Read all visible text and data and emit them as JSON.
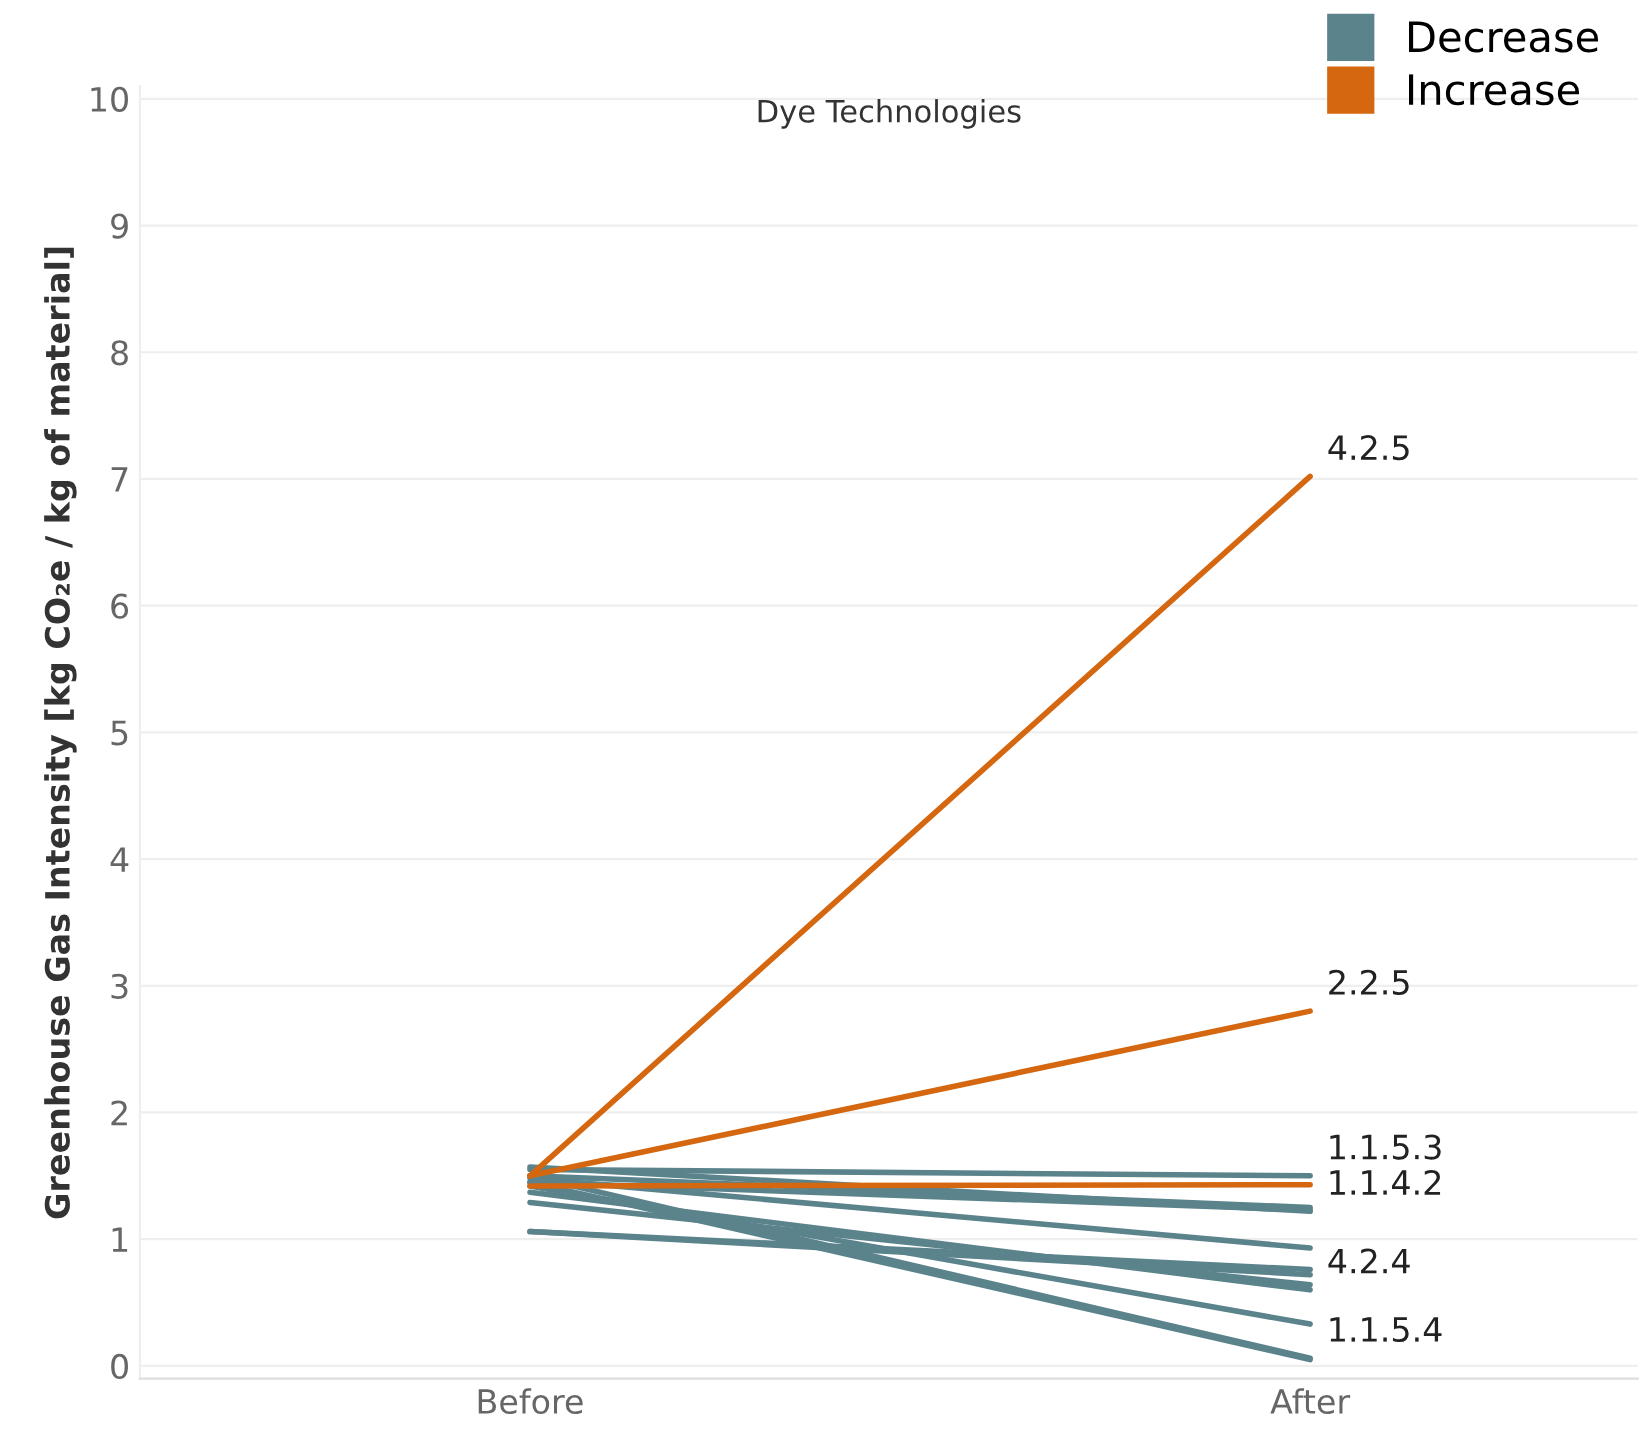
{
  "chart_data": {
    "type": "line",
    "title": "Dye Technologies",
    "ylabel": "Greenhouse Gas Intensity [kg CO₂e / kg of material]",
    "categories": [
      "Before",
      "After"
    ],
    "ylim": [
      -0.1,
      10.1
    ],
    "yticks": [
      0,
      1,
      2,
      3,
      4,
      5,
      6,
      7,
      8,
      9,
      10
    ],
    "grid": "y",
    "legend": "top right",
    "marker": "none",
    "line_style": "solid",
    "series": [
      {
        "name": "Decrease",
        "color": "#5b838c",
        "values": [
          1.55,
          1.5
        ]
      },
      {
        "color": "#5b838c",
        "values": [
          1.5,
          1.25
        ]
      },
      {
        "color": "#5b838c",
        "values": [
          1.45,
          1.23
        ]
      },
      {
        "color": "#5b838c",
        "values": [
          1.57,
          1.22
        ]
      },
      {
        "color": "#5b838c",
        "values": [
          1.48,
          0.93
        ]
      },
      {
        "color": "#5b838c",
        "values": [
          1.06,
          0.76
        ]
      },
      {
        "color": "#5b838c",
        "values": [
          1.06,
          0.72
        ]
      },
      {
        "color": "#5b838c",
        "values": [
          1.29,
          0.64
        ]
      },
      {
        "color": "#5b838c",
        "values": [
          1.37,
          0.6
        ]
      },
      {
        "color": "#5b838c",
        "values": [
          1.42,
          0.33
        ]
      },
      {
        "color": "#5b838c",
        "values": [
          1.5,
          0.06
        ]
      },
      {
        "color": "#5b838c",
        "values": [
          1.45,
          0.05
        ]
      },
      {
        "name": "Increase",
        "color": "#d4670f",
        "values": [
          1.5,
          7.02
        ]
      },
      {
        "color": "#d4670f",
        "values": [
          1.5,
          2.8
        ]
      },
      {
        "color": "#d4670f",
        "values": [
          1.42,
          1.43
        ]
      }
    ],
    "annotations": [
      {
        "text": "4.2.5",
        "x": "After",
        "y": 7.02
      },
      {
        "text": "2.2.5",
        "x": "After",
        "y": 2.8
      },
      {
        "text": "1.1.5.3",
        "x": "After",
        "y": 1.5
      },
      {
        "text": "1.1.4.2",
        "x": "After",
        "y": 1.22
      },
      {
        "text": "4.2.4",
        "x": "After",
        "y": 0.6
      },
      {
        "text": "1.1.5.4",
        "x": "After",
        "y": 0.06
      }
    ]
  }
}
